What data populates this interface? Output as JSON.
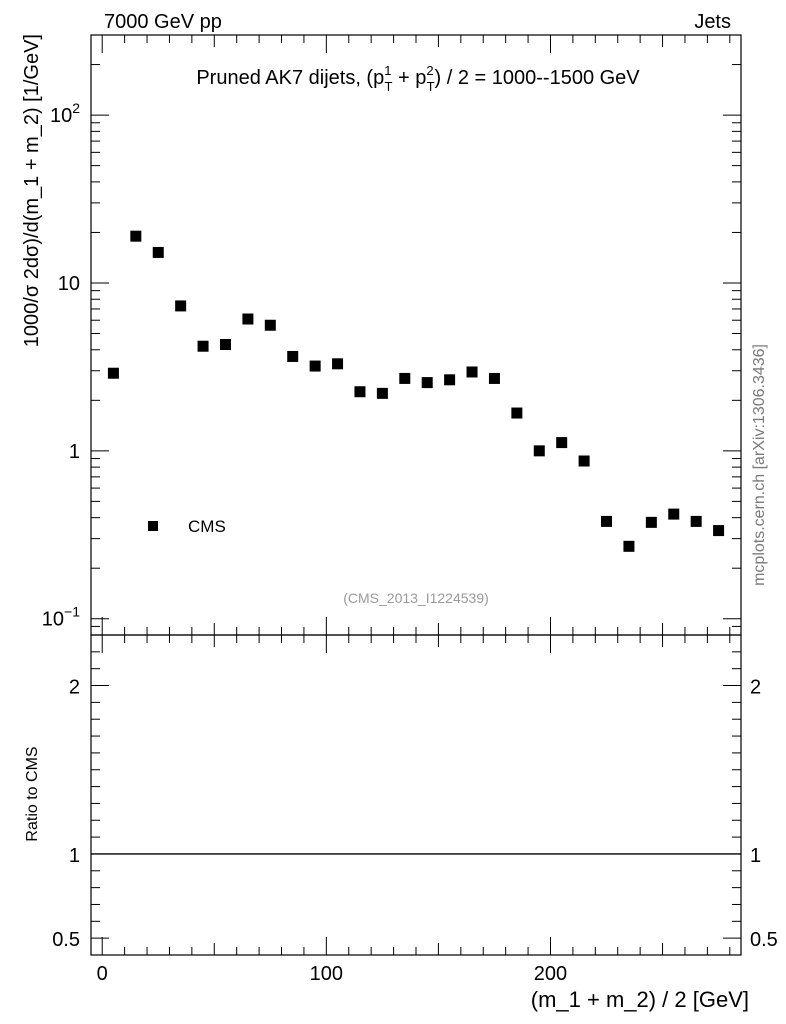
{
  "header": {
    "left": "7000 GeV pp",
    "right": "Jets"
  },
  "chart_data": [
    {
      "type": "scatter",
      "title_parts": {
        "before": "Pruned AK7 dijets, (p",
        "sup1": "1",
        "sub1": "T",
        "mid": " + p",
        "sup2": "2",
        "sub2": "T",
        "after": ") / 2 = 1000--1500 GeV"
      },
      "ylabel": "1000/σ   2dσ)/d(m_1 + m_2) [1/GeV]",
      "yscale": "log",
      "ylim": [
        0.08,
        300
      ],
      "xlim": [
        -5,
        285
      ],
      "ytick_labels": [
        {
          "value": 0.1,
          "base": "10",
          "exp": "−1"
        },
        {
          "value": 1,
          "base": "1",
          "exp": ""
        },
        {
          "value": 10,
          "base": "10",
          "exp": ""
        },
        {
          "value": 100,
          "base": "10",
          "exp": "2"
        }
      ],
      "series": [
        {
          "name": "CMS",
          "marker": "square",
          "color": "#000000",
          "x": [
            5,
            15,
            25,
            35,
            45,
            55,
            65,
            75,
            85,
            95,
            105,
            115,
            125,
            135,
            145,
            155,
            165,
            175,
            185,
            195,
            205,
            215,
            225,
            235,
            245,
            255,
            265,
            275
          ],
          "y": [
            2.9,
            19.0,
            15.2,
            7.3,
            4.2,
            4.3,
            6.1,
            5.6,
            3.65,
            3.2,
            3.3,
            2.25,
            2.2,
            2.7,
            2.55,
            2.65,
            2.95,
            2.7,
            1.68,
            1.0,
            1.12,
            0.87,
            0.38,
            0.27,
            0.375,
            0.42,
            0.38,
            0.335
          ]
        }
      ],
      "legend": {
        "position": "bottom-left",
        "label": "CMS"
      },
      "analysis_tag": "(CMS_2013_I1224539)",
      "watermark": "mcplots.cern.ch [arXiv:1306.3436]"
    },
    {
      "type": "line",
      "ylabel": "Ratio to CMS",
      "xlabel": "(m_1 + m_2) / 2 [GeV]",
      "ylim": [
        0.4,
        2.3
      ],
      "xlim": [
        -5,
        285
      ],
      "ytick_labels": [
        "0.5",
        "1",
        "2"
      ],
      "ytick_values": [
        0.5,
        1,
        2
      ],
      "xtick_labels": [
        "0",
        "100",
        "200"
      ],
      "xtick_values": [
        0,
        100,
        200
      ],
      "reference_line": 1
    }
  ]
}
